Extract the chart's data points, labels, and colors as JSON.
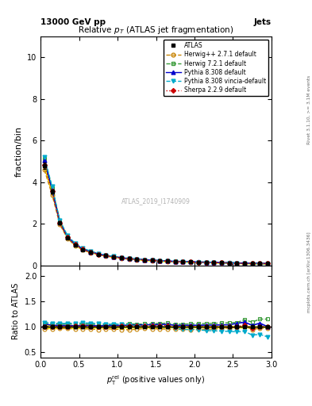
{
  "title": "Relative $p_T$ (ATLAS jet fragmentation)",
  "header_left": "13000 GeV pp",
  "header_right": "Jets",
  "ylabel_main": "fraction/bin",
  "ylabel_ratio": "Ratio to ATLAS",
  "watermark": "ATLAS_2019_I1740909",
  "xlim": [
    0,
    3.0
  ],
  "ylim_main": [
    0,
    11
  ],
  "ylim_ratio": [
    0.4,
    2.2
  ],
  "yticks_main": [
    0,
    2,
    4,
    6,
    8,
    10
  ],
  "yticks_ratio": [
    0.5,
    1.0,
    1.5,
    2.0
  ],
  "x_data": [
    0.05,
    0.15,
    0.25,
    0.35,
    0.45,
    0.55,
    0.65,
    0.75,
    0.85,
    0.95,
    1.05,
    1.15,
    1.25,
    1.35,
    1.45,
    1.55,
    1.65,
    1.75,
    1.85,
    1.95,
    2.05,
    2.15,
    2.25,
    2.35,
    2.45,
    2.55,
    2.65,
    2.75,
    2.85,
    2.95
  ],
  "atlas_y": [
    4.8,
    3.55,
    2.05,
    1.35,
    1.0,
    0.78,
    0.65,
    0.55,
    0.48,
    0.42,
    0.37,
    0.33,
    0.3,
    0.27,
    0.25,
    0.23,
    0.21,
    0.2,
    0.19,
    0.18,
    0.17,
    0.16,
    0.15,
    0.14,
    0.13,
    0.12,
    0.11,
    0.11,
    0.1,
    0.1
  ],
  "atlas_err": [
    0.15,
    0.1,
    0.06,
    0.04,
    0.03,
    0.02,
    0.015,
    0.012,
    0.01,
    0.008,
    0.007,
    0.006,
    0.005,
    0.005,
    0.004,
    0.004,
    0.003,
    0.003,
    0.003,
    0.003,
    0.002,
    0.002,
    0.002,
    0.002,
    0.002,
    0.002,
    0.002,
    0.001,
    0.001,
    0.001
  ],
  "herwig271_y": [
    4.6,
    3.4,
    1.98,
    1.3,
    0.96,
    0.75,
    0.62,
    0.52,
    0.46,
    0.4,
    0.35,
    0.31,
    0.285,
    0.26,
    0.24,
    0.22,
    0.2,
    0.19,
    0.18,
    0.17,
    0.162,
    0.152,
    0.143,
    0.135,
    0.127,
    0.119,
    0.111,
    0.104,
    0.097,
    0.097
  ],
  "herwig721_y": [
    5.15,
    3.75,
    2.15,
    1.42,
    1.05,
    0.82,
    0.68,
    0.575,
    0.5,
    0.44,
    0.39,
    0.35,
    0.315,
    0.285,
    0.265,
    0.245,
    0.225,
    0.21,
    0.2,
    0.19,
    0.18,
    0.17,
    0.16,
    0.15,
    0.14,
    0.13,
    0.125,
    0.12,
    0.115,
    0.115
  ],
  "pythia8308_y": [
    5.05,
    3.65,
    2.1,
    1.38,
    1.02,
    0.8,
    0.665,
    0.56,
    0.49,
    0.43,
    0.38,
    0.34,
    0.31,
    0.28,
    0.26,
    0.24,
    0.22,
    0.205,
    0.195,
    0.185,
    0.175,
    0.165,
    0.155,
    0.145,
    0.135,
    0.128,
    0.12,
    0.113,
    0.107,
    0.1
  ],
  "vincia_y": [
    5.2,
    3.8,
    2.18,
    1.44,
    1.07,
    0.84,
    0.695,
    0.585,
    0.505,
    0.44,
    0.39,
    0.34,
    0.305,
    0.275,
    0.25,
    0.23,
    0.21,
    0.195,
    0.18,
    0.17,
    0.16,
    0.148,
    0.138,
    0.128,
    0.118,
    0.108,
    0.1,
    0.092,
    0.085,
    0.08
  ],
  "sherpa_y": [
    4.82,
    3.56,
    2.06,
    1.36,
    1.01,
    0.79,
    0.655,
    0.55,
    0.48,
    0.42,
    0.375,
    0.335,
    0.305,
    0.275,
    0.255,
    0.235,
    0.215,
    0.2,
    0.19,
    0.18,
    0.17,
    0.16,
    0.15,
    0.14,
    0.13,
    0.12,
    0.113,
    0.107,
    0.1,
    0.1
  ],
  "herwig271_color": "#c8860a",
  "herwig721_color": "#3a9b3a",
  "pythia8308_color": "#0000cc",
  "vincia_color": "#00aacc",
  "sherpa_color": "#cc0000",
  "atlas_color": "#000000",
  "band_color_atlas": "#ffff00",
  "right_label_top": "Rivet 3.1.10, >= 3.1M events",
  "right_label_bottom": "mcplots.cern.ch [arXiv:1306.3436]"
}
